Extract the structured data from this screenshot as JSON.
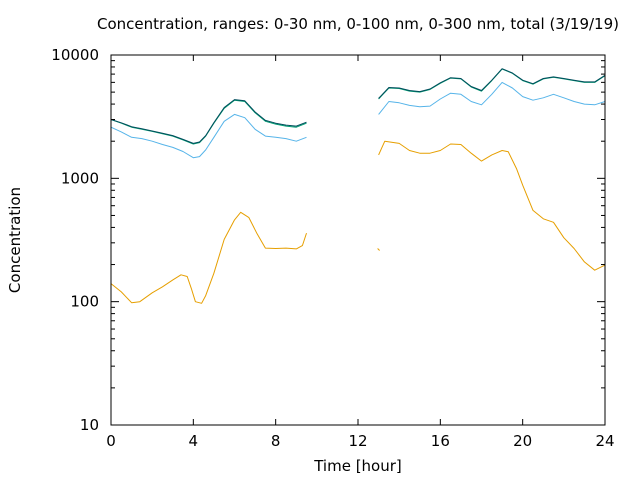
{
  "chart_data": {
    "type": "line",
    "title": "Concentration, ranges: 0-30 nm, 0-100 nm, 0-300 nm, total (3/19/19)",
    "xlabel": "Time [hour]",
    "ylabel": "Concentration",
    "xlim": [
      0,
      24
    ],
    "ylim": [
      10,
      10000
    ],
    "yscale": "log",
    "xticks": [
      0,
      4,
      8,
      12,
      16,
      20,
      24
    ],
    "xtick_labels": [
      "0",
      "4",
      "8",
      "12",
      "16",
      "20",
      "24"
    ],
    "yticks": [
      10,
      100,
      1000,
      10000
    ],
    "ytick_labels": [
      "10",
      "100",
      "1000",
      "10000"
    ],
    "grid": false,
    "legend": "none",
    "series": [
      {
        "color": "#e69f00",
        "segments": [
          [
            [
              0,
              140
            ],
            [
              0.5,
              120
            ],
            [
              1,
              98
            ],
            [
              1.4,
              100
            ],
            [
              2,
              118
            ],
            [
              2.5,
              132
            ],
            [
              3,
              150
            ],
            [
              3.4,
              165
            ],
            [
              3.7,
              160
            ],
            [
              3.9,
              128
            ],
            [
              4.1,
              100
            ],
            [
              4.4,
              97
            ],
            [
              4.6,
              112
            ],
            [
              5,
              170
            ],
            [
              5.5,
              320
            ],
            [
              6,
              460
            ],
            [
              6.3,
              530
            ],
            [
              6.7,
              480
            ],
            [
              7.1,
              355
            ],
            [
              7.5,
              272
            ],
            [
              8,
              270
            ],
            [
              8.5,
              272
            ],
            [
              9,
              268
            ],
            [
              9.3,
              285
            ],
            [
              9.5,
              360
            ]
          ],
          [
            [
              12.95,
              270
            ],
            [
              13.05,
              260
            ]
          ],
          [
            [
              13,
              1550
            ],
            [
              13.3,
              2000
            ],
            [
              14,
              1920
            ],
            [
              14.5,
              1680
            ],
            [
              15,
              1600
            ],
            [
              15.5,
              1600
            ],
            [
              16,
              1680
            ],
            [
              16.5,
              1900
            ],
            [
              17,
              1880
            ],
            [
              17.5,
              1600
            ],
            [
              18,
              1380
            ],
            [
              18.5,
              1550
            ],
            [
              19,
              1680
            ],
            [
              19.3,
              1640
            ],
            [
              19.7,
              1200
            ],
            [
              20,
              880
            ],
            [
              20.5,
              550
            ],
            [
              21,
              470
            ],
            [
              21.5,
              440
            ],
            [
              22,
              330
            ],
            [
              22.5,
              270
            ],
            [
              23,
              210
            ],
            [
              23.5,
              180
            ],
            [
              24,
              198
            ]
          ]
        ]
      },
      {
        "color": "#56b4e9",
        "segments": [
          [
            [
              0,
              2600
            ],
            [
              0.5,
              2380
            ],
            [
              1,
              2150
            ],
            [
              1.5,
              2100
            ],
            [
              2,
              2000
            ],
            [
              2.5,
              1880
            ],
            [
              3,
              1780
            ],
            [
              3.5,
              1650
            ],
            [
              4,
              1470
            ],
            [
              4.3,
              1500
            ],
            [
              4.6,
              1700
            ],
            [
              5,
              2150
            ],
            [
              5.5,
              2900
            ],
            [
              6,
              3300
            ],
            [
              6.5,
              3100
            ],
            [
              7,
              2500
            ],
            [
              7.5,
              2200
            ],
            [
              8,
              2150
            ],
            [
              8.5,
              2100
            ],
            [
              9,
              2000
            ],
            [
              9.5,
              2150
            ]
          ],
          [
            [
              13,
              3300
            ],
            [
              13.5,
              4200
            ],
            [
              14,
              4100
            ],
            [
              14.5,
              3900
            ],
            [
              15,
              3800
            ],
            [
              15.5,
              3850
            ],
            [
              16,
              4400
            ],
            [
              16.5,
              4900
            ],
            [
              17,
              4800
            ],
            [
              17.5,
              4200
            ],
            [
              18,
              3950
            ],
            [
              18.5,
              4800
            ],
            [
              19,
              6000
            ],
            [
              19.5,
              5400
            ],
            [
              20,
              4600
            ],
            [
              20.5,
              4300
            ],
            [
              21,
              4500
            ],
            [
              21.5,
              4800
            ],
            [
              22,
              4500
            ],
            [
              22.5,
              4200
            ],
            [
              23,
              4000
            ],
            [
              23.5,
              3950
            ],
            [
              24,
              4200
            ]
          ]
        ]
      },
      {
        "color": "#009e73",
        "segments": [
          [
            [
              0,
              3000
            ],
            [
              0.5,
              2800
            ],
            [
              1,
              2600
            ],
            [
              1.5,
              2500
            ],
            [
              2,
              2400
            ],
            [
              2.5,
              2300
            ],
            [
              3,
              2200
            ],
            [
              3.5,
              2050
            ],
            [
              4,
              1900
            ],
            [
              4.3,
              1950
            ],
            [
              4.6,
              2200
            ],
            [
              5,
              2800
            ],
            [
              5.5,
              3700
            ],
            [
              6,
              4300
            ],
            [
              6.5,
              4200
            ],
            [
              7,
              3400
            ],
            [
              7.5,
              2900
            ],
            [
              8,
              2750
            ],
            [
              8.5,
              2650
            ],
            [
              9,
              2600
            ],
            [
              9.5,
              2800
            ]
          ],
          [
            [
              13,
              4400
            ],
            [
              13.5,
              5400
            ],
            [
              14,
              5350
            ],
            [
              14.5,
              5100
            ],
            [
              15,
              5000
            ],
            [
              15.5,
              5250
            ],
            [
              16,
              5900
            ],
            [
              16.5,
              6500
            ],
            [
              17,
              6400
            ],
            [
              17.5,
              5500
            ],
            [
              18,
              5100
            ],
            [
              18.5,
              6200
            ],
            [
              19,
              7700
            ],
            [
              19.5,
              7100
            ],
            [
              20,
              6200
            ],
            [
              20.5,
              5800
            ],
            [
              21,
              6400
            ],
            [
              21.5,
              6600
            ],
            [
              22,
              6400
            ],
            [
              22.5,
              6200
            ],
            [
              23,
              6000
            ],
            [
              23.5,
              6000
            ],
            [
              24,
              6800
            ]
          ]
        ]
      },
      {
        "color": "#004d5c",
        "segments": [
          [
            [
              0,
              3000
            ],
            [
              0.5,
              2820
            ],
            [
              1,
              2620
            ],
            [
              1.5,
              2520
            ],
            [
              2,
              2420
            ],
            [
              2.5,
              2320
            ],
            [
              3,
              2220
            ],
            [
              3.5,
              2070
            ],
            [
              4,
              1920
            ],
            [
              4.3,
              1970
            ],
            [
              4.6,
              2220
            ],
            [
              5,
              2830
            ],
            [
              5.5,
              3750
            ],
            [
              6,
              4350
            ],
            [
              6.5,
              4250
            ],
            [
              7,
              3450
            ],
            [
              7.5,
              2950
            ],
            [
              8,
              2800
            ],
            [
              8.5,
              2700
            ],
            [
              9,
              2650
            ],
            [
              9.5,
              2850
            ]
          ],
          [
            [
              13,
              4450
            ],
            [
              13.5,
              5450
            ],
            [
              14,
              5400
            ],
            [
              14.5,
              5150
            ],
            [
              15,
              5050
            ],
            [
              15.5,
              5300
            ],
            [
              16,
              5950
            ],
            [
              16.5,
              6550
            ],
            [
              17,
              6450
            ],
            [
              17.5,
              5550
            ],
            [
              18,
              5150
            ],
            [
              18.5,
              6250
            ],
            [
              19,
              7750
            ],
            [
              19.5,
              7150
            ],
            [
              20,
              6250
            ],
            [
              20.5,
              5850
            ],
            [
              21,
              6450
            ],
            [
              21.5,
              6650
            ],
            [
              22,
              6450
            ],
            [
              22.5,
              6250
            ],
            [
              23,
              6050
            ],
            [
              23.5,
              6050
            ],
            [
              24,
              6850
            ]
          ]
        ]
      }
    ]
  }
}
